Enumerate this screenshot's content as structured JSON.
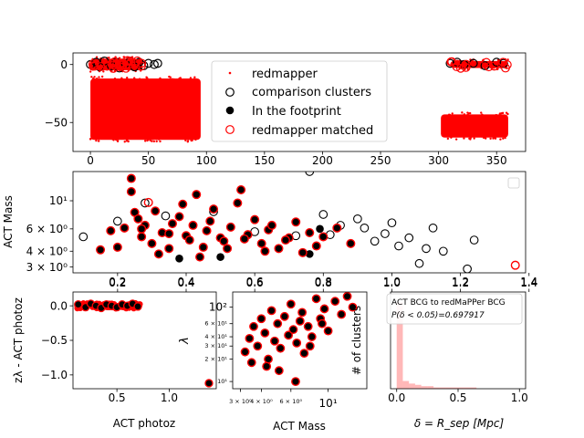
{
  "chart_data": [
    {
      "type": "scatter",
      "xlim": [
        -15,
        375
      ],
      "ylim": [
        -75,
        10
      ],
      "xticks": [
        "0",
        "50",
        "100",
        "150",
        "200",
        "250",
        "300",
        "350"
      ],
      "xtick_values": [
        0,
        50,
        100,
        150,
        200,
        250,
        300,
        350
      ],
      "yticks": [
        "0",
        "−50"
      ],
      "ytick_values": [
        0,
        -50
      ],
      "legend": {
        "placement": "center",
        "entries": [
          {
            "label": "redmapper",
            "marker": "small-red-dot"
          },
          {
            "label": "comparison clusters",
            "marker": "open-black-circle"
          },
          {
            "label": "In the footprint",
            "marker": "filled-black-circle"
          },
          {
            "label": "redmapper matched",
            "marker": "open-red-circle"
          }
        ]
      },
      "regions": [
        {
          "x": [
            0,
            95
          ],
          "y": [
            -65,
            -12
          ]
        },
        {
          "x": [
            302,
            360
          ],
          "y": [
            -63,
            -43
          ]
        },
        {
          "x": [
            0,
            45
          ],
          "y": [
            -5,
            5
          ]
        },
        {
          "x": [
            310,
            360
          ],
          "y": [
            -3,
            3
          ]
        }
      ],
      "open_points": [
        [
          0,
          0
        ],
        [
          5,
          2
        ],
        [
          8,
          -2
        ],
        [
          12,
          3
        ],
        [
          18,
          -1
        ],
        [
          22,
          2
        ],
        [
          25,
          -3
        ],
        [
          30,
          1
        ],
        [
          34,
          3
        ],
        [
          38,
          -2
        ],
        [
          42,
          2
        ],
        [
          46,
          -1
        ],
        [
          50,
          1
        ],
        [
          55,
          0
        ],
        [
          58,
          1
        ],
        [
          310,
          1
        ],
        [
          316,
          2
        ],
        [
          322,
          0
        ],
        [
          330,
          1
        ],
        [
          340,
          -1
        ],
        [
          350,
          2
        ],
        [
          356,
          1
        ]
      ]
    },
    {
      "type": "scatter",
      "ylabel": "ACT Mass",
      "xlim": [
        0.07,
        1.39
      ],
      "ylim": [
        2.7,
        17
      ],
      "yscale": "log",
      "yticks": [
        "10¹",
        "6 × 10⁰",
        "4 × 10⁰",
        "3 × 10⁰"
      ],
      "ytick_values": [
        10,
        6,
        4,
        3
      ],
      "xticks": [
        "0.2",
        "0.4",
        "0.6",
        "0.8",
        "1.0",
        "1.2",
        "1.4"
      ],
      "xtick_values": [
        0.2,
        0.4,
        0.6,
        0.8,
        1.0,
        1.2,
        1.4
      ],
      "top_xticks": [
        "0.2",
        "0.4",
        "0.6",
        "0.8",
        "1.0",
        "1.2",
        "1.4"
      ],
      "matched": [
        [
          0.15,
          4.1
        ],
        [
          0.18,
          5.8
        ],
        [
          0.2,
          4.3
        ],
        [
          0.22,
          6.1
        ],
        [
          0.24,
          15
        ],
        [
          0.24,
          11.8
        ],
        [
          0.25,
          8.1
        ],
        [
          0.26,
          7.2
        ],
        [
          0.27,
          5.2
        ],
        [
          0.28,
          6.4
        ],
        [
          0.3,
          4.6
        ],
        [
          0.31,
          8.3
        ],
        [
          0.33,
          5.6
        ],
        [
          0.35,
          4.2
        ],
        [
          0.36,
          6.6
        ],
        [
          0.38,
          7.5
        ],
        [
          0.39,
          9.4
        ],
        [
          0.4,
          5.3
        ],
        [
          0.42,
          6.4
        ],
        [
          0.43,
          11.2
        ],
        [
          0.45,
          4.3
        ],
        [
          0.46,
          5.8
        ],
        [
          0.47,
          6.9
        ],
        [
          0.48,
          8.6
        ],
        [
          0.5,
          5.1
        ],
        [
          0.51,
          4.8
        ],
        [
          0.53,
          6.2
        ],
        [
          0.55,
          9.6
        ],
        [
          0.56,
          12.2
        ],
        [
          0.58,
          5.4
        ],
        [
          0.6,
          7.1
        ],
        [
          0.62,
          4.6
        ],
        [
          0.64,
          5.9
        ],
        [
          0.65,
          6.4
        ],
        [
          0.67,
          4.2
        ],
        [
          0.7,
          5.1
        ],
        [
          0.72,
          6.8
        ],
        [
          0.74,
          3.9
        ],
        [
          0.76,
          5.6
        ],
        [
          0.78,
          4.4
        ],
        [
          0.8,
          5.2
        ],
        [
          0.84,
          6.1
        ],
        [
          0.88,
          4.6
        ],
        [
          0.32,
          3.8
        ],
        [
          0.44,
          3.6
        ],
        [
          0.52,
          4.2
        ],
        [
          0.27,
          6.0
        ],
        [
          0.35,
          5.5
        ],
        [
          0.41,
          4.9
        ],
        [
          0.57,
          5.0
        ],
        [
          0.63,
          4.0
        ],
        [
          0.69,
          4.9
        ]
      ],
      "comparison_only": [
        [
          0.1,
          5.2
        ],
        [
          0.2,
          6.9
        ],
        [
          0.28,
          9.6
        ],
        [
          0.34,
          7.6
        ],
        [
          0.48,
          8.2
        ],
        [
          0.6,
          5.7
        ],
        [
          0.72,
          5.3
        ],
        [
          0.76,
          17
        ],
        [
          0.8,
          7.8
        ],
        [
          0.85,
          6.4
        ],
        [
          0.9,
          7.2
        ],
        [
          0.95,
          4.8
        ],
        [
          0.98,
          5.5
        ],
        [
          1.0,
          6.7
        ],
        [
          1.02,
          4.4
        ],
        [
          1.05,
          5.1
        ],
        [
          1.08,
          3.2
        ],
        [
          1.1,
          4.2
        ],
        [
          1.12,
          6.1
        ],
        [
          1.15,
          4.0
        ],
        [
          1.22,
          2.9
        ],
        [
          1.24,
          4.9
        ],
        [
          0.92,
          6.1
        ],
        [
          0.82,
          5.4
        ]
      ],
      "footprint_only": [
        [
          0.38,
          3.5
        ],
        [
          0.5,
          3.6
        ],
        [
          0.76,
          3.8
        ],
        [
          0.79,
          6.0
        ]
      ],
      "matched_open": [
        [
          0.29,
          9.7
        ],
        [
          1.36,
          3.1
        ]
      ]
    },
    {
      "type": "scatter",
      "xlabel": "ACT photoz",
      "ylabel": "zλ - ACT photoz",
      "xlim": [
        0.08,
        1.45
      ],
      "ylim": [
        -1.2,
        0.2
      ],
      "xticks": [
        "0.5",
        "1.0"
      ],
      "xtick_values": [
        0.5,
        1.0
      ],
      "yticks": [
        "0.0",
        "−0.5",
        "−1.0"
      ],
      "ytick_values": [
        0,
        -0.5,
        -1.0
      ],
      "points": [
        [
          0.13,
          0.02
        ],
        [
          0.2,
          -0.02
        ],
        [
          0.25,
          0.03
        ],
        [
          0.3,
          0.0
        ],
        [
          0.35,
          -0.03
        ],
        [
          0.4,
          0.02
        ],
        [
          0.45,
          0.0
        ],
        [
          0.5,
          -0.02
        ],
        [
          0.55,
          0.02
        ],
        [
          0.6,
          0.0
        ],
        [
          0.65,
          0.03
        ],
        [
          0.7,
          -0.01
        ],
        [
          1.38,
          -1.12
        ]
      ]
    },
    {
      "type": "scatter",
      "xlabel": "ACT Mass",
      "ylabel": "λ",
      "xscale": "log",
      "yscale": "log",
      "xlim": [
        2.7,
        17
      ],
      "ylim": [
        8,
        160
      ],
      "xticks": [
        "3 × 10⁰",
        "4 × 10⁰",
        "6 × 10⁰",
        "10¹"
      ],
      "xtick_values": [
        3,
        4,
        6,
        10
      ],
      "yticks": [
        "10²",
        "6 × 10¹",
        "4 × 10¹",
        "3 × 10¹",
        "2 × 10¹",
        "10¹"
      ],
      "ytick_values": [
        100,
        60,
        40,
        30,
        20,
        10
      ],
      "points": [
        [
          3.2,
          25
        ],
        [
          3.4,
          38
        ],
        [
          3.6,
          55
        ],
        [
          3.8,
          30
        ],
        [
          4.0,
          70
        ],
        [
          4.2,
          45
        ],
        [
          4.4,
          20
        ],
        [
          4.6,
          90
        ],
        [
          4.8,
          35
        ],
        [
          5.0,
          60
        ],
        [
          5.2,
          28
        ],
        [
          5.5,
          75
        ],
        [
          5.8,
          42
        ],
        [
          6.0,
          110
        ],
        [
          6.2,
          50
        ],
        [
          6.5,
          33
        ],
        [
          6.8,
          65
        ],
        [
          7.0,
          85
        ],
        [
          7.2,
          24
        ],
        [
          7.6,
          55
        ],
        [
          8.0,
          40
        ],
        [
          8.5,
          130
        ],
        [
          9.0,
          70
        ],
        [
          9.5,
          95
        ],
        [
          10,
          48
        ],
        [
          11,
          120
        ],
        [
          12,
          80
        ],
        [
          13,
          140
        ],
        [
          14,
          100
        ],
        [
          4.3,
          16
        ],
        [
          5.1,
          14
        ],
        [
          6.4,
          10
        ],
        [
          3.5,
          18
        ],
        [
          7.8,
          30
        ],
        [
          9.2,
          60
        ]
      ]
    },
    {
      "type": "bar",
      "xlabel": "δ = R_sep [Mpc]",
      "ylabel": "# of clusters",
      "xlim": [
        -0.05,
        1.05
      ],
      "xticks": [
        "0.0",
        "0.5",
        "1.0"
      ],
      "xtick_values": [
        0,
        0.5,
        1.0
      ],
      "annotation_lines": [
        "ACT BCG to redMaPPer BCG",
        "P(δ < 0.05)=0.697917"
      ],
      "bins": [
        0.0,
        0.05,
        0.1,
        0.15,
        0.2,
        0.25,
        0.3,
        0.35,
        0.4,
        0.45,
        0.5,
        0.55,
        0.6,
        0.65
      ],
      "counts": [
        67,
        6,
        4,
        3,
        2,
        2,
        1,
        1,
        1,
        1,
        1,
        1,
        1
      ],
      "ylim": [
        0,
        75
      ]
    }
  ]
}
